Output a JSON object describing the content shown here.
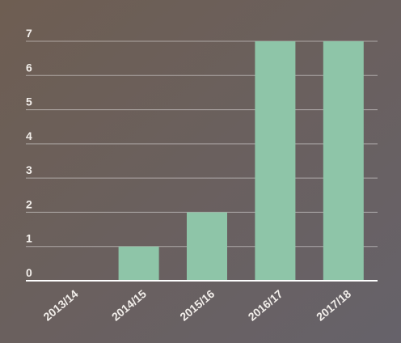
{
  "chart_data": {
    "type": "bar",
    "categories": [
      "2013/14",
      "2014/15",
      "2015/16",
      "2016/17",
      "2017/18"
    ],
    "values": [
      0,
      1,
      2,
      7,
      7
    ],
    "color": "#8ec5a8",
    "ylim": [
      0,
      7
    ],
    "yticks": [
      0,
      1,
      2,
      3,
      4,
      5,
      6,
      7
    ],
    "grid": true
  }
}
